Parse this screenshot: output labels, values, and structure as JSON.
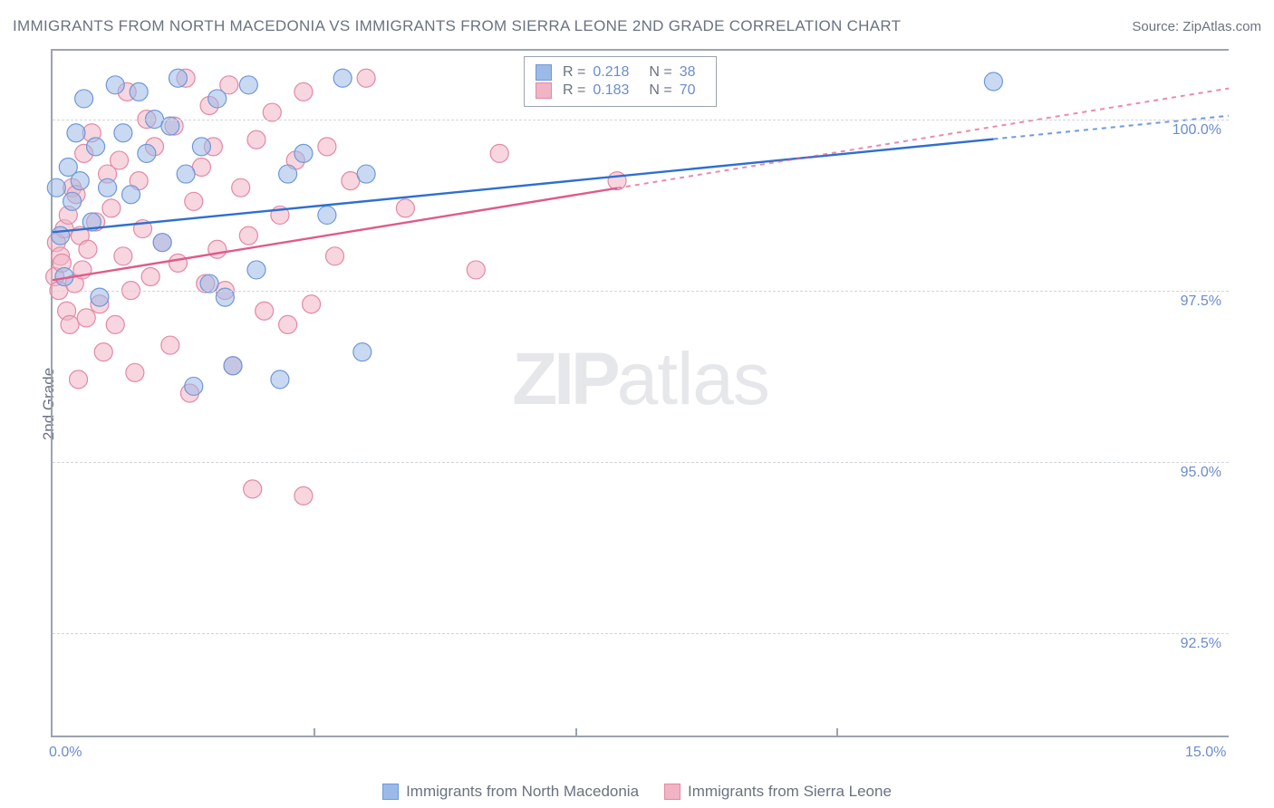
{
  "title": "IMMIGRANTS FROM NORTH MACEDONIA VS IMMIGRANTS FROM SIERRA LEONE 2ND GRADE CORRELATION CHART",
  "source_prefix": "Source: ",
  "source_name": "ZipAtlas.com",
  "ylabel": "2nd Grade",
  "watermark_bold": "ZIP",
  "watermark_rest": "atlas",
  "chart": {
    "type": "scatter",
    "xlim": [
      0.0,
      15.0
    ],
    "ylim": [
      91.0,
      101.0
    ],
    "xticks": [
      {
        "value": 0.0,
        "label": "0.0%"
      },
      {
        "value": 15.0,
        "label": "15.0%"
      }
    ],
    "xminor": [
      3.3333,
      6.6666,
      10.0
    ],
    "yticks": [
      {
        "value": 92.5,
        "label": "92.5%"
      },
      {
        "value": 95.0,
        "label": "95.0%"
      },
      {
        "value": 97.5,
        "label": "97.5%"
      },
      {
        "value": 100.0,
        "label": "100.0%"
      }
    ],
    "ytick_fontsize": 16,
    "xtick_fontsize": 16,
    "label_fontsize": 17,
    "grid_color": "#d1d5db",
    "axis_color": "#9ca3af",
    "background_color": "#ffffff",
    "series": [
      {
        "name": "Immigrants from North Macedonia",
        "color_fill": "#9cbae8",
        "color_stroke": "#6f98d8",
        "line_color": "#2f6fd0",
        "marker_radius": 10,
        "marker_opacity": 0.55,
        "r": "0.218",
        "n": "38",
        "trend": {
          "x1": 0.0,
          "y1": 98.35,
          "x2": 15.0,
          "y2": 100.05,
          "solid_until_x": 12.0
        },
        "points": [
          [
            0.05,
            99.0
          ],
          [
            0.1,
            98.3
          ],
          [
            0.15,
            97.7
          ],
          [
            0.2,
            99.3
          ],
          [
            0.25,
            98.8
          ],
          [
            0.3,
            99.8
          ],
          [
            0.35,
            99.1
          ],
          [
            0.4,
            100.3
          ],
          [
            0.5,
            98.5
          ],
          [
            0.55,
            99.6
          ],
          [
            0.6,
            97.4
          ],
          [
            0.7,
            99.0
          ],
          [
            0.8,
            100.5
          ],
          [
            0.9,
            99.8
          ],
          [
            1.0,
            98.9
          ],
          [
            1.1,
            100.4
          ],
          [
            1.2,
            99.5
          ],
          [
            1.3,
            100.0
          ],
          [
            1.4,
            98.2
          ],
          [
            1.5,
            99.9
          ],
          [
            1.6,
            100.6
          ],
          [
            1.7,
            99.2
          ],
          [
            1.8,
            96.1
          ],
          [
            1.9,
            99.6
          ],
          [
            2.0,
            97.6
          ],
          [
            2.1,
            100.3
          ],
          [
            2.2,
            97.4
          ],
          [
            2.3,
            96.4
          ],
          [
            2.5,
            100.5
          ],
          [
            2.6,
            97.8
          ],
          [
            2.9,
            96.2
          ],
          [
            3.0,
            99.2
          ],
          [
            3.2,
            99.5
          ],
          [
            3.5,
            98.6
          ],
          [
            3.7,
            100.6
          ],
          [
            3.95,
            96.6
          ],
          [
            4.0,
            99.2
          ],
          [
            12.0,
            100.55
          ]
        ]
      },
      {
        "name": "Immigrants from Sierra Leone",
        "color_fill": "#f0b4c4",
        "color_stroke": "#e389a4",
        "line_color": "#e05a8a",
        "marker_radius": 10,
        "marker_opacity": 0.55,
        "r": "0.183",
        "n": "70",
        "trend": {
          "x1": 0.0,
          "y1": 97.65,
          "x2": 15.0,
          "y2": 100.45,
          "solid_until_x": 7.2
        },
        "points": [
          [
            0.03,
            97.7
          ],
          [
            0.05,
            98.2
          ],
          [
            0.08,
            97.5
          ],
          [
            0.1,
            98.0
          ],
          [
            0.12,
            97.9
          ],
          [
            0.15,
            98.4
          ],
          [
            0.18,
            97.2
          ],
          [
            0.2,
            98.6
          ],
          [
            0.22,
            97.0
          ],
          [
            0.25,
            99.0
          ],
          [
            0.28,
            97.6
          ],
          [
            0.3,
            98.9
          ],
          [
            0.33,
            96.2
          ],
          [
            0.35,
            98.3
          ],
          [
            0.38,
            97.8
          ],
          [
            0.4,
            99.5
          ],
          [
            0.43,
            97.1
          ],
          [
            0.45,
            98.1
          ],
          [
            0.5,
            99.8
          ],
          [
            0.55,
            98.5
          ],
          [
            0.6,
            97.3
          ],
          [
            0.65,
            96.6
          ],
          [
            0.7,
            99.2
          ],
          [
            0.75,
            98.7
          ],
          [
            0.8,
            97.0
          ],
          [
            0.85,
            99.4
          ],
          [
            0.9,
            98.0
          ],
          [
            0.95,
            100.4
          ],
          [
            1.0,
            97.5
          ],
          [
            1.05,
            96.3
          ],
          [
            1.1,
            99.1
          ],
          [
            1.15,
            98.4
          ],
          [
            1.2,
            100.0
          ],
          [
            1.25,
            97.7
          ],
          [
            1.3,
            99.6
          ],
          [
            1.4,
            98.2
          ],
          [
            1.5,
            96.7
          ],
          [
            1.55,
            99.9
          ],
          [
            1.6,
            97.9
          ],
          [
            1.7,
            100.6
          ],
          [
            1.75,
            96.0
          ],
          [
            1.8,
            98.8
          ],
          [
            1.9,
            99.3
          ],
          [
            1.95,
            97.6
          ],
          [
            2.0,
            100.2
          ],
          [
            2.05,
            99.6
          ],
          [
            2.1,
            98.1
          ],
          [
            2.2,
            97.5
          ],
          [
            2.25,
            100.5
          ],
          [
            2.3,
            96.4
          ],
          [
            2.4,
            99.0
          ],
          [
            2.5,
            98.3
          ],
          [
            2.55,
            94.6
          ],
          [
            2.6,
            99.7
          ],
          [
            2.7,
            97.2
          ],
          [
            2.8,
            100.1
          ],
          [
            2.9,
            98.6
          ],
          [
            3.0,
            97.0
          ],
          [
            3.1,
            99.4
          ],
          [
            3.2,
            94.5
          ],
          [
            3.2,
            100.4
          ],
          [
            3.3,
            97.3
          ],
          [
            3.5,
            99.6
          ],
          [
            3.6,
            98.0
          ],
          [
            3.8,
            99.1
          ],
          [
            4.0,
            100.6
          ],
          [
            4.5,
            98.7
          ],
          [
            5.4,
            97.8
          ],
          [
            5.7,
            99.5
          ],
          [
            7.2,
            99.1
          ]
        ]
      }
    ]
  },
  "legend_top": {
    "r_label": "R =",
    "n_label": "N ="
  },
  "bottom_legend": [
    {
      "series_index": 0
    },
    {
      "series_index": 1
    }
  ]
}
